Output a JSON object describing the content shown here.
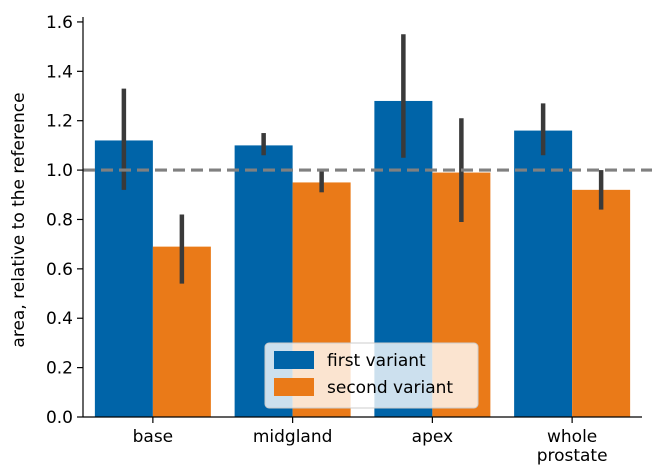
{
  "chart_data": {
    "type": "bar",
    "title": "",
    "xlabel": "",
    "ylabel": "area, relative to the reference",
    "ylim": [
      0,
      1.62
    ],
    "yticks": [
      "0.0",
      "0.2",
      "0.4",
      "0.6",
      "0.8",
      "1.0",
      "1.2",
      "1.4",
      "1.6"
    ],
    "categories": [
      [
        "base"
      ],
      [
        "midgland"
      ],
      [
        "apex"
      ],
      [
        "whole",
        "prostate"
      ]
    ],
    "series": [
      {
        "name": "first variant",
        "color": "#0064a8",
        "values": [
          1.12,
          1.1,
          1.28,
          1.16
        ],
        "err_low": [
          0.92,
          1.06,
          1.05,
          1.06
        ],
        "err_high": [
          1.33,
          1.15,
          1.55,
          1.27
        ]
      },
      {
        "name": "second variant",
        "color": "#ea7a18",
        "values": [
          0.69,
          0.95,
          0.99,
          0.92
        ],
        "err_low": [
          0.54,
          0.91,
          0.79,
          0.84
        ],
        "err_high": [
          0.82,
          1.0,
          1.21,
          1.0
        ]
      }
    ],
    "reference_line": {
      "y": 1.0,
      "style": "dashed",
      "color": "#808080"
    },
    "grid": false,
    "legend_position": "lower center",
    "error_bar_color": "#3a3a3a"
  }
}
